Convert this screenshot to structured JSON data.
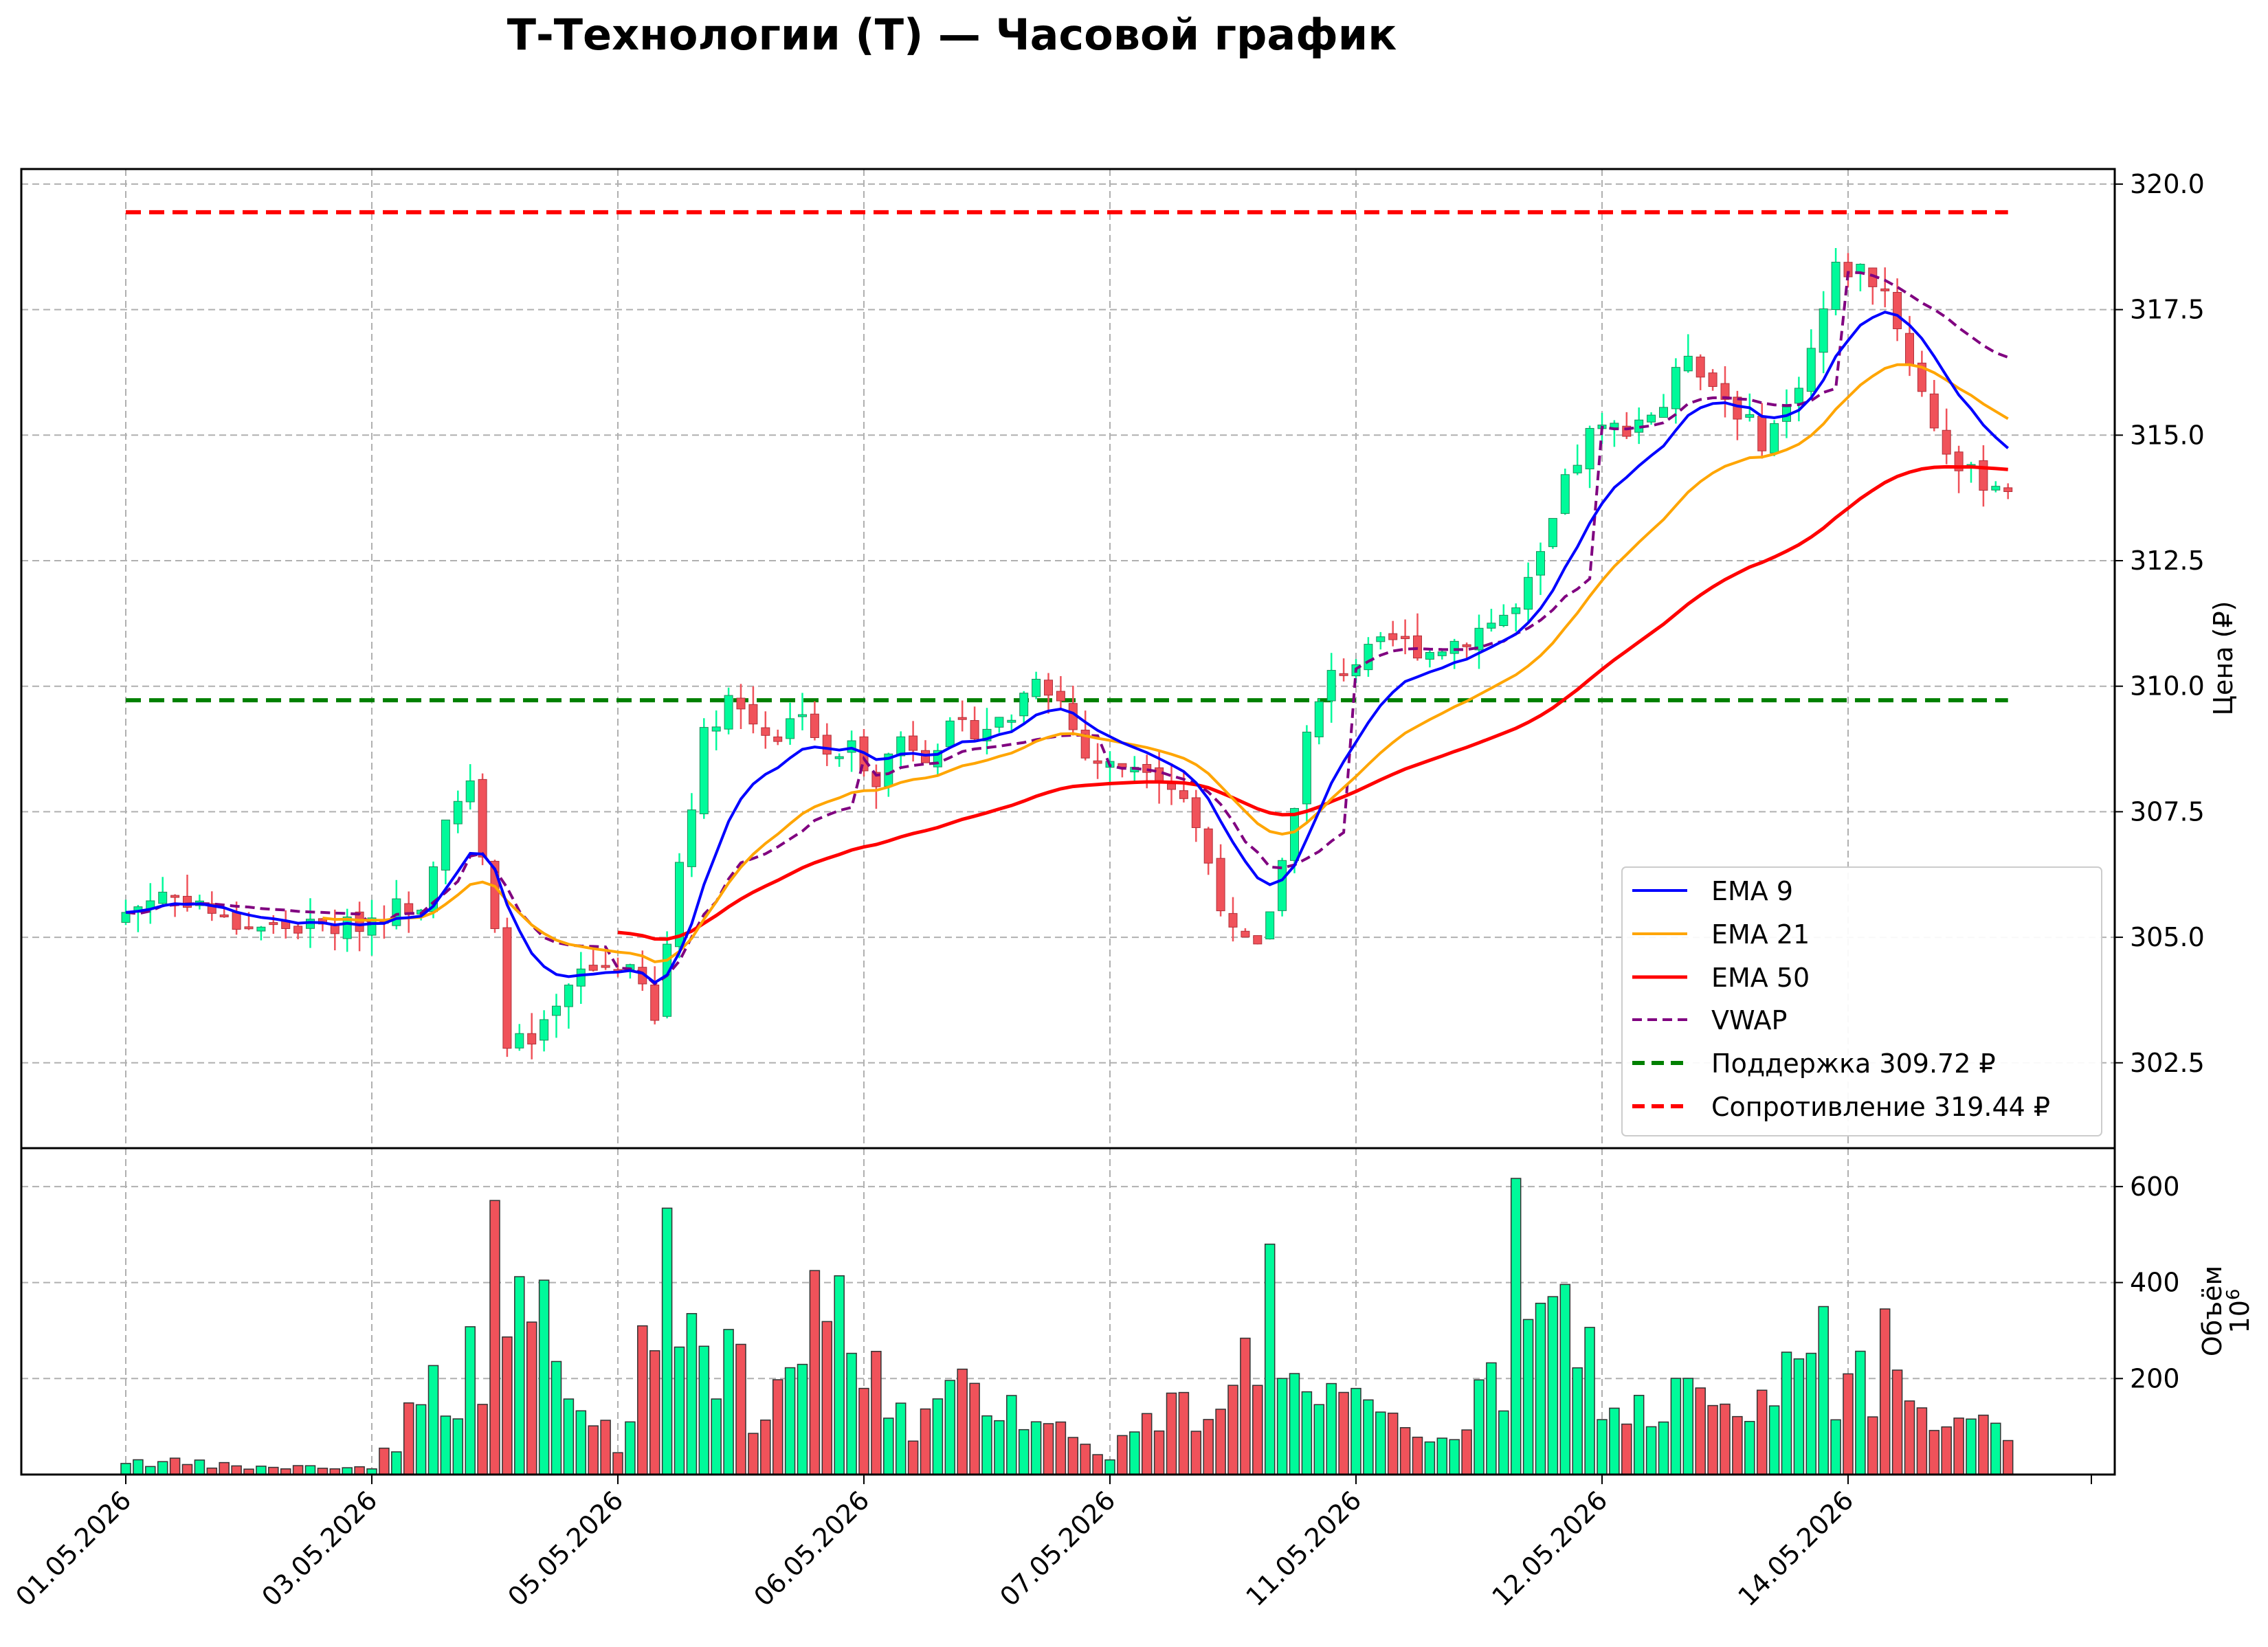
{
  "chart_data": {
    "type": "candlestick",
    "title": "Т-Технологии (T) — Часовой график",
    "price_panel": {
      "ylabel": "Цена (₽)",
      "ylim": [
        300.8,
        320.3
      ],
      "yticks": [
        302.5,
        305.0,
        307.5,
        310.0,
        312.5,
        315.0,
        317.5,
        320.0
      ],
      "grid": true,
      "legend_position": "lower-right"
    },
    "volume_panel": {
      "ylabel": "Объём",
      "scale_label": "10",
      "scale_exponent": "6",
      "ylim": [
        0,
        680
      ],
      "yticks": [
        200,
        400,
        600
      ],
      "grid": true
    },
    "x_axis": {
      "tick_labels": [
        "01.05.2026",
        "03.05.2026",
        "05.05.2026",
        "06.05.2026",
        "07.05.2026",
        "11.05.2026",
        "12.05.2026",
        "14.05.2026"
      ],
      "tick_bar_index": [
        0,
        20,
        40,
        60,
        80,
        100,
        120,
        140
      ],
      "bar_count": 154
    },
    "close_waypoints": [
      [
        0,
        305.5
      ],
      [
        3,
        305.9
      ],
      [
        6,
        305.7
      ],
      [
        8,
        305.3
      ],
      [
        12,
        305.2
      ],
      [
        18,
        305.2
      ],
      [
        22,
        305.6
      ],
      [
        24,
        305.7
      ],
      [
        26,
        307.5
      ],
      [
        28,
        308.0
      ],
      [
        30,
        305.0
      ],
      [
        31,
        303.0
      ],
      [
        33,
        302.8
      ],
      [
        35,
        303.5
      ],
      [
        37,
        304.3
      ],
      [
        40,
        304.5
      ],
      [
        42,
        304.0
      ],
      [
        43,
        303.3
      ],
      [
        45,
        306.5
      ],
      [
        47,
        309.0
      ],
      [
        49,
        309.8
      ],
      [
        51,
        309.3
      ],
      [
        53,
        309.0
      ],
      [
        55,
        309.6
      ],
      [
        57,
        308.5
      ],
      [
        59,
        308.8
      ],
      [
        61,
        308.2
      ],
      [
        63,
        309.0
      ],
      [
        65,
        308.7
      ],
      [
        67,
        309.1
      ],
      [
        70,
        309.2
      ],
      [
        72,
        309.4
      ],
      [
        74,
        310.3
      ],
      [
        76,
        309.7
      ],
      [
        78,
        308.6
      ],
      [
        80,
        308.4
      ],
      [
        83,
        308.5
      ],
      [
        86,
        307.8
      ],
      [
        88,
        306.5
      ],
      [
        90,
        305.0
      ],
      [
        92,
        304.7
      ],
      [
        94,
        306.5
      ],
      [
        96,
        309.0
      ],
      [
        98,
        310.2
      ],
      [
        100,
        310.5
      ],
      [
        103,
        310.9
      ],
      [
        106,
        310.7
      ],
      [
        109,
        311.0
      ],
      [
        111,
        311.3
      ],
      [
        113,
        311.5
      ],
      [
        115,
        312.5
      ],
      [
        117,
        314.0
      ],
      [
        119,
        315.0
      ],
      [
        122,
        315.2
      ],
      [
        125,
        315.6
      ],
      [
        127,
        316.7
      ],
      [
        129,
        316.0
      ],
      [
        131,
        315.5
      ],
      [
        133,
        314.9
      ],
      [
        135,
        315.5
      ],
      [
        137,
        316.7
      ],
      [
        139,
        318.3
      ],
      [
        141,
        318.3
      ],
      [
        143,
        317.9
      ],
      [
        145,
        316.5
      ],
      [
        147,
        315.2
      ],
      [
        149,
        314.3
      ],
      [
        151,
        314.1
      ],
      [
        153,
        314.0
      ]
    ],
    "volume_waypoints": [
      [
        0,
        30
      ],
      [
        10,
        15
      ],
      [
        20,
        15
      ],
      [
        25,
        180
      ],
      [
        30,
        250
      ],
      [
        33,
        330
      ],
      [
        36,
        150
      ],
      [
        40,
        80
      ],
      [
        43,
        300
      ],
      [
        46,
        320
      ],
      [
        49,
        250
      ],
      [
        52,
        80
      ],
      [
        55,
        270
      ],
      [
        58,
        300
      ],
      [
        61,
        200
      ],
      [
        64,
        110
      ],
      [
        67,
        150
      ],
      [
        70,
        180
      ],
      [
        73,
        150
      ],
      [
        77,
        70
      ],
      [
        80,
        50
      ],
      [
        84,
        120
      ],
      [
        88,
        150
      ],
      [
        92,
        260
      ],
      [
        96,
        150
      ],
      [
        100,
        130
      ],
      [
        105,
        80
      ],
      [
        109,
        110
      ],
      [
        113,
        230
      ],
      [
        116,
        330
      ],
      [
        118,
        300
      ],
      [
        121,
        120
      ],
      [
        124,
        140
      ],
      [
        128,
        160
      ],
      [
        132,
        90
      ],
      [
        136,
        260
      ],
      [
        139,
        120
      ],
      [
        143,
        240
      ],
      [
        146,
        180
      ],
      [
        150,
        100
      ],
      [
        153,
        70
      ]
    ],
    "volume_spikes": [
      [
        30,
        571
      ],
      [
        34,
        405
      ],
      [
        44,
        555
      ],
      [
        56,
        425
      ],
      [
        93,
        480
      ],
      [
        113,
        617
      ],
      [
        138,
        350
      ],
      [
        143,
        345
      ]
    ],
    "overlays": {
      "ema9_label": "EMA 9",
      "ema9_period": 9,
      "ema21_label": "EMA 21",
      "ema21_period": 21,
      "ema50_label": "EMA 50",
      "ema50_period": 50,
      "vwap_label": "VWAP",
      "support_label": "Поддержка 309.72 ₽",
      "support_value": 309.72,
      "resistance_label": "Сопротивление 319.44 ₽",
      "resistance_value": 319.44
    },
    "colors": {
      "up": "#00fa9a",
      "down": "#f0525a",
      "candle_edge_up": "#1e8c5a",
      "candle_edge_down": "#b0303a",
      "ema9": "#0000ff",
      "ema21": "#ffa500",
      "ema50": "#ff0000",
      "vwap": "#800080",
      "support": "#008000",
      "resistance": "#ff0000",
      "grid": "#b0b0b0"
    }
  }
}
